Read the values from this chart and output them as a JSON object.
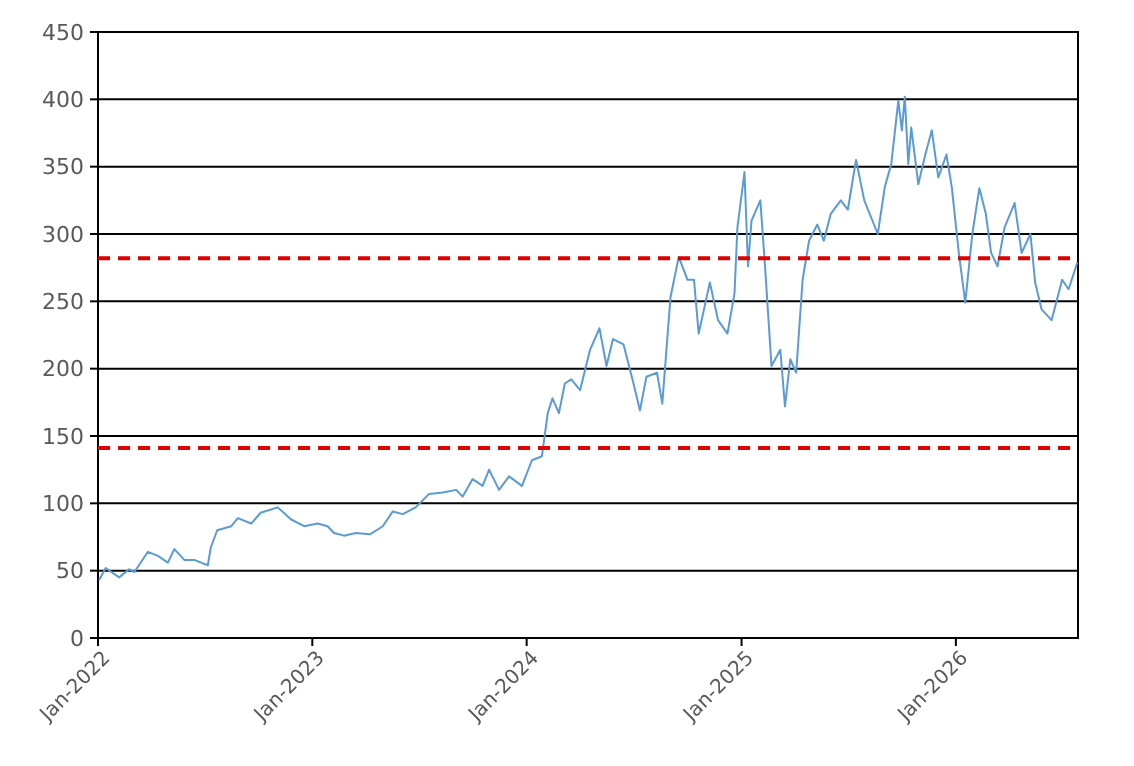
{
  "chart_data": {
    "type": "line",
    "x": [
      "2022-01-03",
      "2022-01-14",
      "2022-02-06",
      "2022-02-23",
      "2022-03-04",
      "2022-03-27",
      "2022-04-13",
      "2022-04-30",
      "2022-05-11",
      "2022-05-28",
      "2022-06-14",
      "2022-07-07",
      "2022-07-12",
      "2022-07-23",
      "2022-08-16",
      "2022-08-27",
      "2022-09-19",
      "2022-10-05",
      "2022-11-03",
      "2022-11-26",
      "2022-12-18",
      "2023-01-10",
      "2023-01-27",
      "2023-02-07",
      "2023-02-24",
      "2023-03-16",
      "2023-04-09",
      "2023-05-01",
      "2023-05-18",
      "2023-06-04",
      "2023-06-26",
      "2023-07-19",
      "2023-08-11",
      "2023-09-03",
      "2023-09-14",
      "2023-10-01",
      "2023-10-18",
      "2023-10-29",
      "2023-11-15",
      "2023-12-02",
      "2023-12-24",
      "2024-01-10",
      "2024-01-27",
      "2024-02-06",
      "2024-02-14",
      "2024-02-25",
      "2024-03-06",
      "2024-03-17",
      "2024-04-01",
      "2024-04-18",
      "2024-05-04",
      "2024-05-16",
      "2024-05-27",
      "2024-06-14",
      "2024-07-01",
      "2024-07-12",
      "2024-07-23",
      "2024-08-10",
      "2024-08-19",
      "2024-09-02",
      "2024-09-16",
      "2024-10-01",
      "2024-10-12",
      "2024-10-20",
      "2024-11-08",
      "2024-11-22",
      "2024-12-08",
      "2024-12-20",
      "2024-12-25",
      "2025-01-06",
      "2025-01-12",
      "2025-01-18",
      "2025-02-02",
      "2025-02-10",
      "2025-02-21",
      "2025-03-08",
      "2025-03-16",
      "2025-03-25",
      "2025-04-04",
      "2025-04-15",
      "2025-04-26",
      "2025-05-10",
      "2025-05-21",
      "2025-06-02",
      "2025-06-19",
      "2025-07-01",
      "2025-07-15",
      "2025-07-29",
      "2025-08-21",
      "2025-09-02",
      "2025-09-13",
      "2025-09-25",
      "2025-10-01",
      "2025-10-06",
      "2025-10-12",
      "2025-10-17",
      "2025-10-29",
      "2025-11-10",
      "2025-11-21",
      "2025-12-02",
      "2025-12-16",
      "2025-12-25",
      "2026-01-06",
      "2026-01-17",
      "2026-01-29",
      "2026-02-10",
      "2026-02-21",
      "2026-03-02",
      "2026-03-13",
      "2026-03-25",
      "2026-04-11",
      "2026-04-23",
      "2026-05-08",
      "2026-05-16",
      "2026-05-27",
      "2026-06-13",
      "2026-07-01",
      "2026-07-12",
      "2026-07-27"
    ],
    "series": [
      {
        "color": "#5b9bd5",
        "values": [
          43,
          52,
          45,
          51,
          49,
          64,
          61,
          56,
          66,
          58,
          58,
          54,
          67,
          80,
          83,
          89,
          85,
          93,
          97,
          88,
          83,
          85,
          83,
          78,
          76,
          78,
          77,
          83,
          94,
          92,
          97,
          107,
          108,
          110,
          105,
          118,
          113,
          125,
          110,
          120,
          113,
          132,
          135,
          167,
          178,
          167,
          189,
          192,
          184,
          214,
          230,
          202,
          222,
          218,
          189,
          169,
          194,
          197,
          174,
          253,
          283,
          266,
          266,
          226,
          264,
          236,
          226,
          256,
          305,
          346,
          276,
          310,
          325,
          276,
          202,
          214,
          172,
          207,
          197,
          266,
          295,
          307,
          295,
          315,
          325,
          318,
          355,
          325,
          300,
          335,
          352,
          399,
          377,
          402,
          352,
          379,
          337,
          359,
          377,
          342,
          359,
          335,
          286,
          249,
          300,
          334,
          315,
          286,
          276,
          305,
          323,
          286,
          300,
          264,
          244,
          236,
          266,
          259,
          279
        ]
      }
    ],
    "xlim": [
      "2022-01-01",
      "2026-07-28"
    ],
    "xticks": [
      {
        "value": "2022-01-01",
        "label": "Jan-2022"
      },
      {
        "value": "2023-01-01",
        "label": "Jan-2023"
      },
      {
        "value": "2024-01-01",
        "label": "Jan-2024"
      },
      {
        "value": "2025-01-01",
        "label": "Jan-2025"
      },
      {
        "value": "2026-01-01",
        "label": "Jan-2026"
      }
    ],
    "ylim": [
      0,
      450
    ],
    "yticks": [
      0,
      50,
      100,
      150,
      200,
      250,
      300,
      350,
      400,
      450
    ],
    "grid": "y",
    "marker": "none",
    "line_style": "solid",
    "ref_lines": [
      {
        "axis": "y",
        "value": 282,
        "color": "#e00000",
        "line_style": "dashed"
      },
      {
        "axis": "y",
        "value": 141,
        "color": "#e00000",
        "line_style": "dashed"
      }
    ]
  }
}
